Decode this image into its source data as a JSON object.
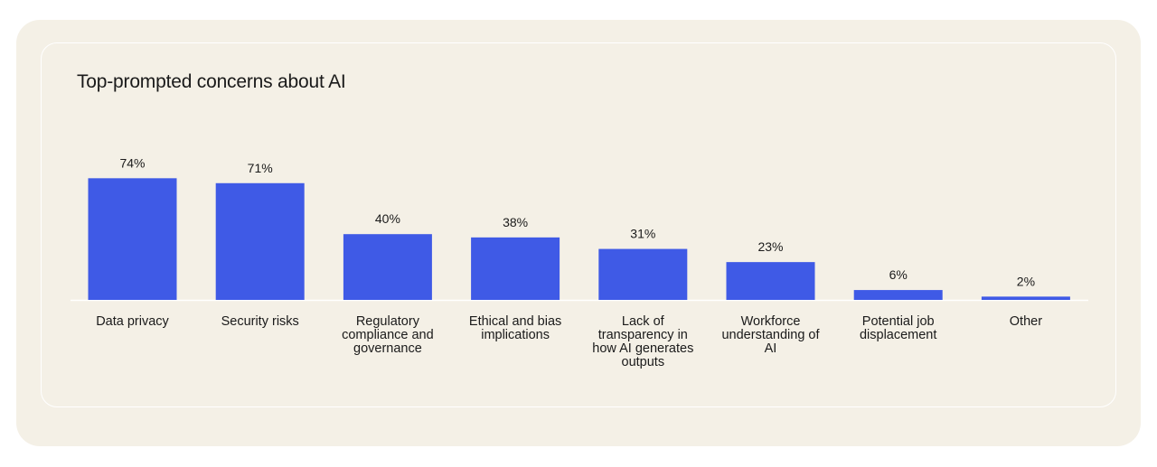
{
  "chart_data": {
    "type": "bar",
    "title": "Top-prompted concerns about AI",
    "categories": [
      "Data privacy",
      "Security risks",
      "Regulatory compliance and governance",
      "Ethical and bias implications",
      "Lack of transparency in how AI generates outputs",
      "Workforce understanding of AI",
      "Potential job displacement",
      "Other"
    ],
    "category_lines": [
      [
        "Data privacy"
      ],
      [
        "Security risks"
      ],
      [
        "Regulatory",
        "compliance and",
        "governance"
      ],
      [
        "Ethical and bias",
        "implications"
      ],
      [
        "Lack of",
        "transparency in",
        "how AI generates",
        "outputs"
      ],
      [
        "Workforce",
        "understanding of",
        "AI"
      ],
      [
        "Potential job",
        "displacement"
      ],
      [
        "Other"
      ]
    ],
    "values": [
      74,
      71,
      40,
      38,
      31,
      23,
      6,
      2
    ],
    "value_labels": [
      "74%",
      "71%",
      "40%",
      "38%",
      "31%",
      "23%",
      "6%",
      "2%"
    ],
    "unit": "%",
    "ylim": [
      0,
      100
    ],
    "grid": false,
    "bar_color": "#3f5ae6",
    "baseline_color": "#ffffff"
  }
}
